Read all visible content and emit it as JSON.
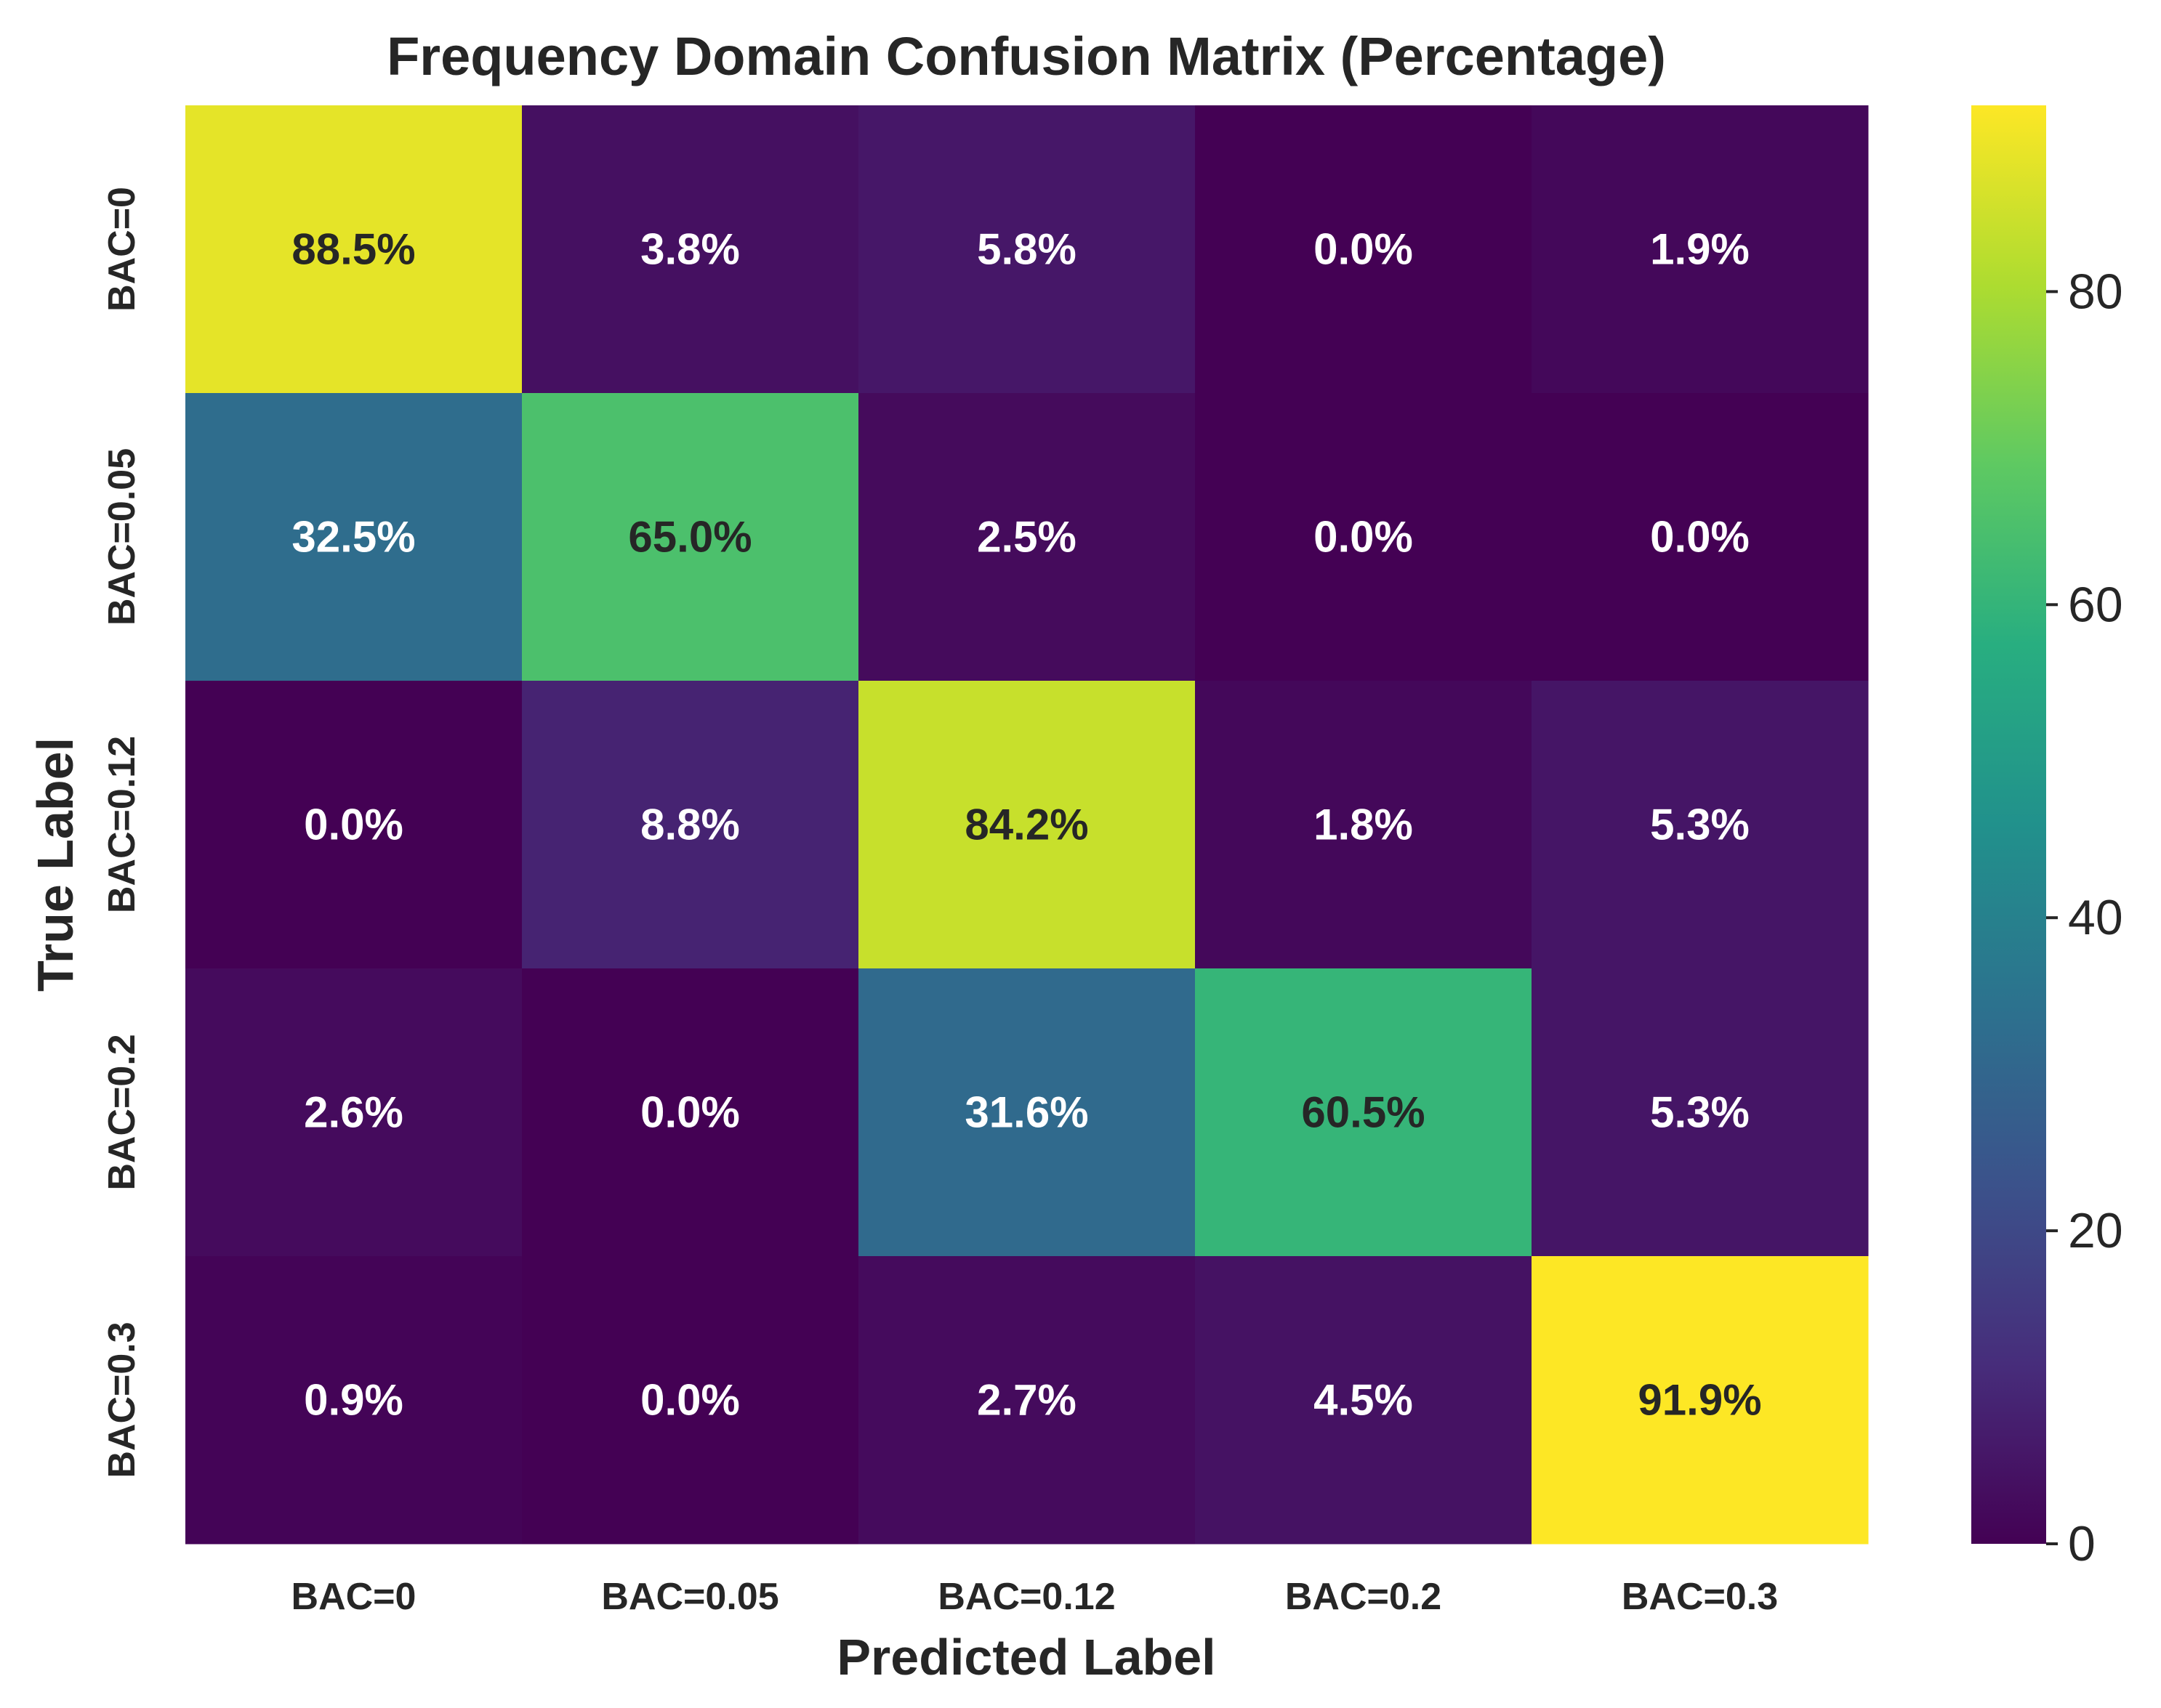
{
  "chart_data": {
    "type": "heatmap",
    "title": "Frequency Domain Confusion Matrix (Percentage)",
    "xlabel": "Predicted Label",
    "ylabel": "True Label",
    "x_categories": [
      "BAC=0",
      "BAC=0.05",
      "BAC=0.12",
      "BAC=0.2",
      "BAC=0.3"
    ],
    "y_categories": [
      "BAC=0",
      "BAC=0.05",
      "BAC=0.12",
      "BAC=0.2",
      "BAC=0.3"
    ],
    "values": [
      [
        88.5,
        3.8,
        5.8,
        0.0,
        1.9
      ],
      [
        32.5,
        65.0,
        2.5,
        0.0,
        0.0
      ],
      [
        0.0,
        8.8,
        84.2,
        1.8,
        5.3
      ],
      [
        2.6,
        0.0,
        31.6,
        60.5,
        5.3
      ],
      [
        0.9,
        0.0,
        2.7,
        4.5,
        91.9
      ]
    ],
    "value_suffix": "%",
    "colormap": "viridis",
    "vmin": 0,
    "vmax": 91.9,
    "colorbar": {
      "ticks": [
        0,
        20,
        40,
        60,
        80
      ],
      "tick_labels": [
        "0",
        "20",
        "40",
        "60",
        "80"
      ]
    }
  }
}
